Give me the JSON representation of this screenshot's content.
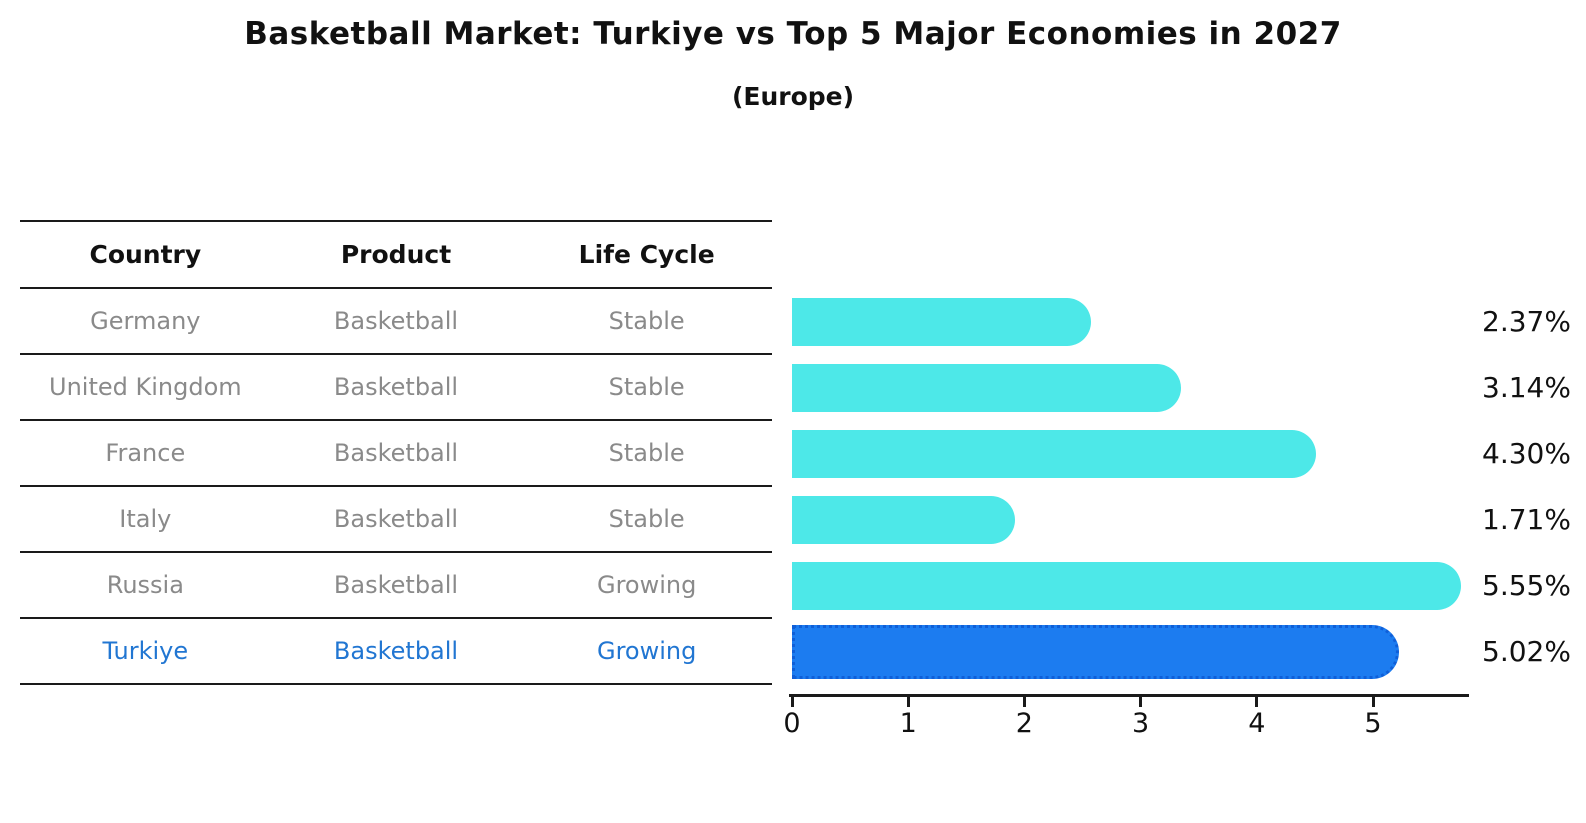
{
  "title": "Basketball Market: Turkiye vs Top 5 Major Economies in 2027",
  "subtitle": "(Europe)",
  "table": {
    "headers": {
      "country": "Country",
      "product": "Product",
      "life_cycle": "Life Cycle"
    },
    "rows": [
      {
        "country": "Germany",
        "product": "Basketball",
        "life_cycle": "Stable",
        "highlight": false
      },
      {
        "country": "United Kingdom",
        "product": "Basketball",
        "life_cycle": "Stable",
        "highlight": false
      },
      {
        "country": "France",
        "product": "Basketball",
        "life_cycle": "Stable",
        "highlight": false
      },
      {
        "country": "Italy",
        "product": "Basketball",
        "life_cycle": "Stable",
        "highlight": false
      },
      {
        "country": "Russia",
        "product": "Basketball",
        "life_cycle": "Growing",
        "highlight": false
      },
      {
        "country": "Turkiye",
        "product": "Basketball",
        "life_cycle": "Growing",
        "highlight": true
      }
    ]
  },
  "chart_data": {
    "type": "bar",
    "orientation": "horizontal",
    "title": "Basketball Market: Turkiye vs Top 5 Major Economies in 2027",
    "subtitle": "(Europe)",
    "categories": [
      "Germany",
      "United Kingdom",
      "France",
      "Italy",
      "Russia",
      "Turkiye"
    ],
    "values": [
      2.37,
      3.14,
      4.3,
      1.71,
      5.55,
      5.02
    ],
    "value_labels": [
      "2.37%",
      "3.14%",
      "4.30%",
      "1.71%",
      "5.55%",
      "5.02%"
    ],
    "xlabel": "",
    "ylabel": "",
    "xticks": [
      0,
      1,
      2,
      3,
      4,
      5
    ],
    "xlim": [
      0,
      5.82
    ],
    "grid": false,
    "legend": null,
    "bar_color": "#4DE8E8",
    "highlight_bar_color": "#1C7CF0",
    "highlight_border_color": "#0F5FD8",
    "highlight_index": 5,
    "bar_end_style": "rounded-right"
  },
  "colors": {
    "line": "#1a1a1a",
    "text_muted": "#8a8a8a",
    "text_dark": "#111111",
    "highlight_text": "#2176D2"
  }
}
